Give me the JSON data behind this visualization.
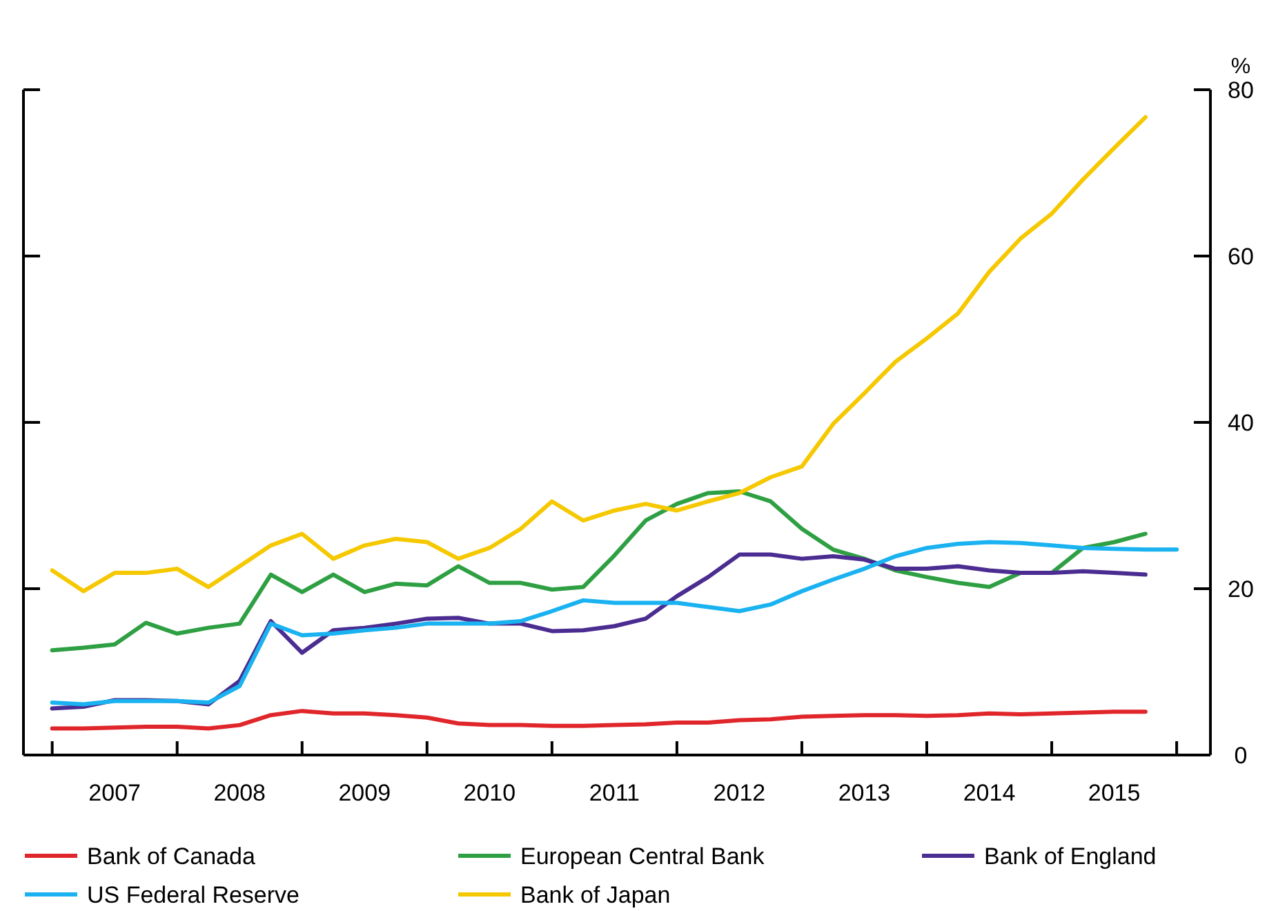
{
  "chart_data": {
    "type": "line",
    "ylabel": "%",
    "legend": "bottom",
    "grid": false,
    "line_style": "solid",
    "marker": "none",
    "x": [
      2007,
      2007.25,
      2007.5,
      2007.75,
      2008,
      2008.25,
      2008.5,
      2008.75,
      2009,
      2009.25,
      2009.5,
      2009.75,
      2010,
      2010.25,
      2010.5,
      2010.75,
      2011,
      2011.25,
      2011.5,
      2011.75,
      2012,
      2012.25,
      2012.5,
      2012.75,
      2013,
      2013.25,
      2013.5,
      2013.75,
      2014,
      2014.25,
      2014.5,
      2014.75,
      2015,
      2015.25,
      2015.5,
      2015.75
    ],
    "xlim": [
      2006.77,
      2016.27
    ],
    "xticks": [
      {
        "value": 2007,
        "label": null
      },
      {
        "value": 2008,
        "label": null
      },
      {
        "value": 2009,
        "label": null
      },
      {
        "value": 2010,
        "label": null
      },
      {
        "value": 2011,
        "label": null
      },
      {
        "value": 2012,
        "label": null
      },
      {
        "value": 2013,
        "label": null
      },
      {
        "value": 2014,
        "label": null
      },
      {
        "value": 2015,
        "label": null
      },
      {
        "value": 2016,
        "label": null
      },
      {
        "value": 2007.5,
        "label": "2007"
      },
      {
        "value": 2008.5,
        "label": "2008"
      },
      {
        "value": 2009.5,
        "label": "2009"
      },
      {
        "value": 2010.5,
        "label": "2010"
      },
      {
        "value": 2011.5,
        "label": "2011"
      },
      {
        "value": 2012.5,
        "label": "2012"
      },
      {
        "value": 2013.5,
        "label": "2013"
      },
      {
        "value": 2014.5,
        "label": "2014"
      },
      {
        "value": 2015.5,
        "label": "2015"
      }
    ],
    "ylim": [
      0,
      80
    ],
    "yticks": [
      0,
      20,
      40,
      60,
      80
    ],
    "series": [
      {
        "name": "Bank of Canada",
        "color": "#e0262a",
        "values": [
          3.2,
          3.2,
          3.3,
          3.4,
          3.4,
          3.2,
          3.6,
          4.8,
          5.3,
          5.0,
          5.0,
          4.8,
          4.5,
          3.8,
          3.6,
          3.6,
          3.5,
          3.5,
          3.6,
          3.7,
          3.9,
          3.9,
          4.2,
          4.3,
          4.6,
          4.7,
          4.8,
          4.8,
          4.7,
          4.8,
          5.0,
          4.9,
          5.0,
          5.1,
          5.2,
          5.2
        ]
      },
      {
        "name": "European Central Bank",
        "color": "#2ea043",
        "values": [
          12.6,
          12.9,
          13.3,
          15.9,
          14.6,
          15.3,
          15.8,
          21.7,
          19.6,
          21.7,
          19.6,
          20.6,
          20.4,
          22.7,
          20.7,
          20.7,
          19.9,
          20.2,
          24,
          28.2,
          30.2,
          31.5,
          31.7,
          30.5,
          27.2,
          24.7,
          23.6,
          22.2,
          21.4,
          20.7,
          20.2,
          21.9,
          21.9,
          24.9,
          25.6,
          26.6
        ]
      },
      {
        "name": "Bank of England",
        "color": "#4b2c91",
        "values": [
          5.6,
          5.8,
          6.6,
          6.6,
          6.5,
          6.1,
          8.9,
          16.1,
          12.3,
          15,
          15.3,
          15.8,
          16.4,
          16.5,
          15.8,
          15.8,
          14.9,
          15,
          15.5,
          16.4,
          19.1,
          21.4,
          24.1,
          24.1,
          23.6,
          23.9,
          23.5,
          22.4,
          22.4,
          22.7,
          22.2,
          21.9,
          21.9,
          22.1,
          21.9,
          21.7
        ]
      },
      {
        "name": "US Federal Reserve",
        "color": "#1ab2f0",
        "x": [
          2007,
          2007.25,
          2007.5,
          2007.75,
          2008,
          2008.25,
          2008.5,
          2008.75,
          2009,
          2009.25,
          2009.5,
          2009.75,
          2010,
          2010.25,
          2010.5,
          2010.75,
          2011,
          2011.25,
          2011.5,
          2011.75,
          2012,
          2012.25,
          2012.5,
          2012.75,
          2013,
          2013.25,
          2013.5,
          2013.75,
          2014,
          2014.25,
          2014.5,
          2014.75,
          2015,
          2015.25,
          2015.5,
          2015.75,
          2016
        ],
        "values": [
          6.3,
          6.1,
          6.5,
          6.5,
          6.5,
          6.3,
          8.3,
          15.8,
          14.4,
          14.6,
          15,
          15.3,
          15.8,
          15.8,
          15.8,
          16.1,
          17.3,
          18.6,
          18.3,
          18.3,
          18.3,
          17.8,
          17.3,
          18.1,
          19.7,
          21.1,
          22.4,
          23.9,
          24.9,
          25.4,
          25.6,
          25.5,
          25.2,
          24.9,
          24.8,
          24.7,
          24.7
        ]
      },
      {
        "name": "Bank of Japan",
        "color": "#f5c800",
        "values": [
          22.2,
          19.7,
          21.9,
          21.9,
          22.4,
          20.2,
          22.7,
          25.2,
          26.6,
          23.6,
          25.2,
          26,
          25.6,
          23.6,
          24.9,
          27.2,
          30.5,
          28.2,
          29.4,
          30.2,
          29.4,
          30.5,
          31.5,
          33.4,
          34.7,
          39.8,
          43.5,
          47.3,
          50.1,
          53.1,
          58.1,
          62.1,
          65.1,
          69.2,
          73,
          76.7
        ]
      }
    ]
  }
}
